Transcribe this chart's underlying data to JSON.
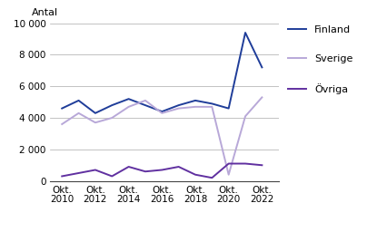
{
  "years": [
    2010,
    2011,
    2012,
    2013,
    2014,
    2015,
    2016,
    2017,
    2018,
    2019,
    2020,
    2021,
    2022
  ],
  "finland": [
    4600,
    5100,
    4300,
    4800,
    5200,
    4800,
    4400,
    4800,
    5100,
    4900,
    4600,
    9400,
    7200
  ],
  "sverige": [
    3600,
    4300,
    3700,
    4000,
    4700,
    5100,
    4300,
    4600,
    4700,
    4700,
    400,
    4100,
    5300
  ],
  "ovriga": [
    300,
    500,
    700,
    300,
    900,
    600,
    700,
    900,
    400,
    200,
    1100,
    1100,
    1000
  ],
  "finland_color": "#1f3d99",
  "sverige_color": "#b8a8d8",
  "ovriga_color": "#6030a0",
  "ylabel": "Antal",
  "ylim": [
    0,
    10000
  ],
  "yticks": [
    0,
    2000,
    4000,
    6000,
    8000,
    10000
  ],
  "ytick_labels": [
    "0",
    "2 000",
    "4 000",
    "6 000",
    "8 000",
    "10 000"
  ],
  "xtick_labels": [
    "Okt.\n2010",
    "Okt.\n2012",
    "Okt.\n2014",
    "Okt.\n2016",
    "Okt.\n2018",
    "Okt.\n2020",
    "Okt.\n2022"
  ],
  "xtick_positions": [
    2010,
    2012,
    2014,
    2016,
    2018,
    2020,
    2022
  ],
  "legend_labels": [
    "Finland",
    "Sverige",
    "Övriga"
  ],
  "background_color": "#ffffff"
}
